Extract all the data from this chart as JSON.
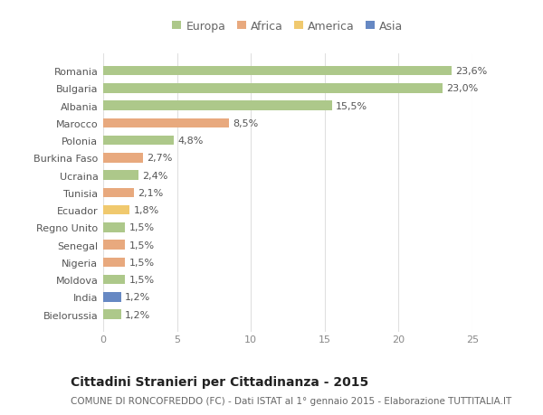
{
  "categories": [
    "Romania",
    "Bulgaria",
    "Albania",
    "Marocco",
    "Polonia",
    "Burkina Faso",
    "Ucraina",
    "Tunisia",
    "Ecuador",
    "Regno Unito",
    "Senegal",
    "Nigeria",
    "Moldova",
    "India",
    "Bielorussia"
  ],
  "values": [
    23.6,
    23.0,
    15.5,
    8.5,
    4.8,
    2.7,
    2.4,
    2.1,
    1.8,
    1.5,
    1.5,
    1.5,
    1.5,
    1.2,
    1.2
  ],
  "labels": [
    "23,6%",
    "23,0%",
    "15,5%",
    "8,5%",
    "4,8%",
    "2,7%",
    "2,4%",
    "2,1%",
    "1,8%",
    "1,5%",
    "1,5%",
    "1,5%",
    "1,5%",
    "1,2%",
    "1,2%"
  ],
  "continents": [
    "Europa",
    "Europa",
    "Europa",
    "Africa",
    "Europa",
    "Africa",
    "Europa",
    "Africa",
    "America",
    "Europa",
    "Africa",
    "Africa",
    "Europa",
    "Asia",
    "Europa"
  ],
  "colors": {
    "Europa": "#adc88a",
    "Africa": "#e8a97e",
    "America": "#f0c96e",
    "Asia": "#6688c3"
  },
  "legend_order": [
    "Europa",
    "Africa",
    "America",
    "Asia"
  ],
  "title": "Cittadini Stranieri per Cittadinanza - 2015",
  "subtitle": "COMUNE DI RONCOFREDDO (FC) - Dati ISTAT al 1° gennaio 2015 - Elaborazione TUTTITALIA.IT",
  "xlim": [
    0,
    25
  ],
  "xticks": [
    0,
    5,
    10,
    15,
    20,
    25
  ],
  "background_color": "#ffffff",
  "grid_color": "#e0e0e0",
  "bar_height": 0.55,
  "title_fontsize": 10,
  "subtitle_fontsize": 7.5,
  "tick_fontsize": 8,
  "label_fontsize": 8,
  "legend_fontsize": 9
}
